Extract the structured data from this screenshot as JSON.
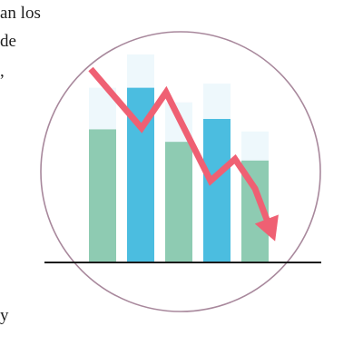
{
  "text": {
    "line_1": "an los",
    "line_2": "de",
    "line_3": ",",
    "line_4": "y"
  },
  "chart_data": {
    "type": "bar",
    "categories": [
      "",
      "",
      "",
      "",
      ""
    ],
    "series": [
      {
        "values": [
          0.64,
          0.84,
          0.58,
          0.69,
          0.49
        ]
      },
      {
        "values": [
          0.84,
          1.0,
          0.77,
          0.86,
          0.63
        ]
      }
    ],
    "trend": {
      "values": [
        1.0,
        0.62,
        0.85,
        0.28,
        0.42,
        0.23,
        0.0
      ]
    },
    "ylim": [
      0,
      1
    ],
    "grid": false
  },
  "colors": {
    "circle_stroke": "#a8889c",
    "bar_green": "#8ecbb2",
    "bar_blue": "#4bbde0",
    "bar_ghost": "#eef8fc",
    "trend_arrow": "#ef6073",
    "baseline": "#1a1a1a"
  }
}
